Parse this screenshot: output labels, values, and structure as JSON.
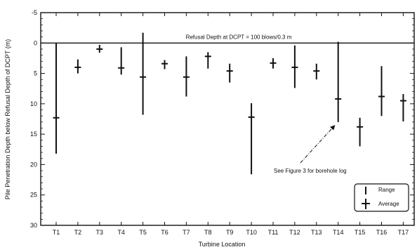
{
  "chart_data": {
    "type": "range-plot",
    "xlabel": "Turbine Location",
    "ylabel": "Pile Penetration Depth below Refusal Depth of DCPT (m)",
    "categories": [
      "T1",
      "T2",
      "T3",
      "T4",
      "T5",
      "T6",
      "T7",
      "T8",
      "T9",
      "T10",
      "T11",
      "T12",
      "T13",
      "T14",
      "T15",
      "T16",
      "T17"
    ],
    "ylim": [
      -5,
      30
    ],
    "y_inverted": true,
    "yticks": [
      -5,
      0,
      5,
      10,
      15,
      20,
      25,
      30
    ],
    "series": [
      {
        "name": "Range",
        "low": [
          0,
          2.7,
          0.3,
          0.7,
          -1.7,
          2.8,
          2.2,
          1.5,
          3.4,
          9.9,
          2.5,
          0.4,
          3.4,
          -0.2,
          12.3,
          3.8,
          8.4
        ],
        "high": [
          18.2,
          5.0,
          1.6,
          5.2,
          11.8,
          4.3,
          8.8,
          4.2,
          6.5,
          21.6,
          4.2,
          7.4,
          6.0,
          13.0,
          17.0,
          12.0,
          12.9
        ]
      },
      {
        "name": "Average",
        "values": [
          12.3,
          4.0,
          1.0,
          4.1,
          5.6,
          3.4,
          5.6,
          2.2,
          4.6,
          12.2,
          3.3,
          4.0,
          4.6,
          9.2,
          13.8,
          8.8,
          9.5
        ]
      }
    ],
    "reference_line": {
      "y": 0,
      "label": "Refusal Depth at DCPT = 100 blows/0.3 m"
    },
    "annotation": {
      "text": "See Figure 3 for borehole log",
      "category": "T14",
      "y": 13.0
    },
    "legend": {
      "position": "bottom-right",
      "entries": [
        "Range",
        "Average"
      ]
    }
  }
}
